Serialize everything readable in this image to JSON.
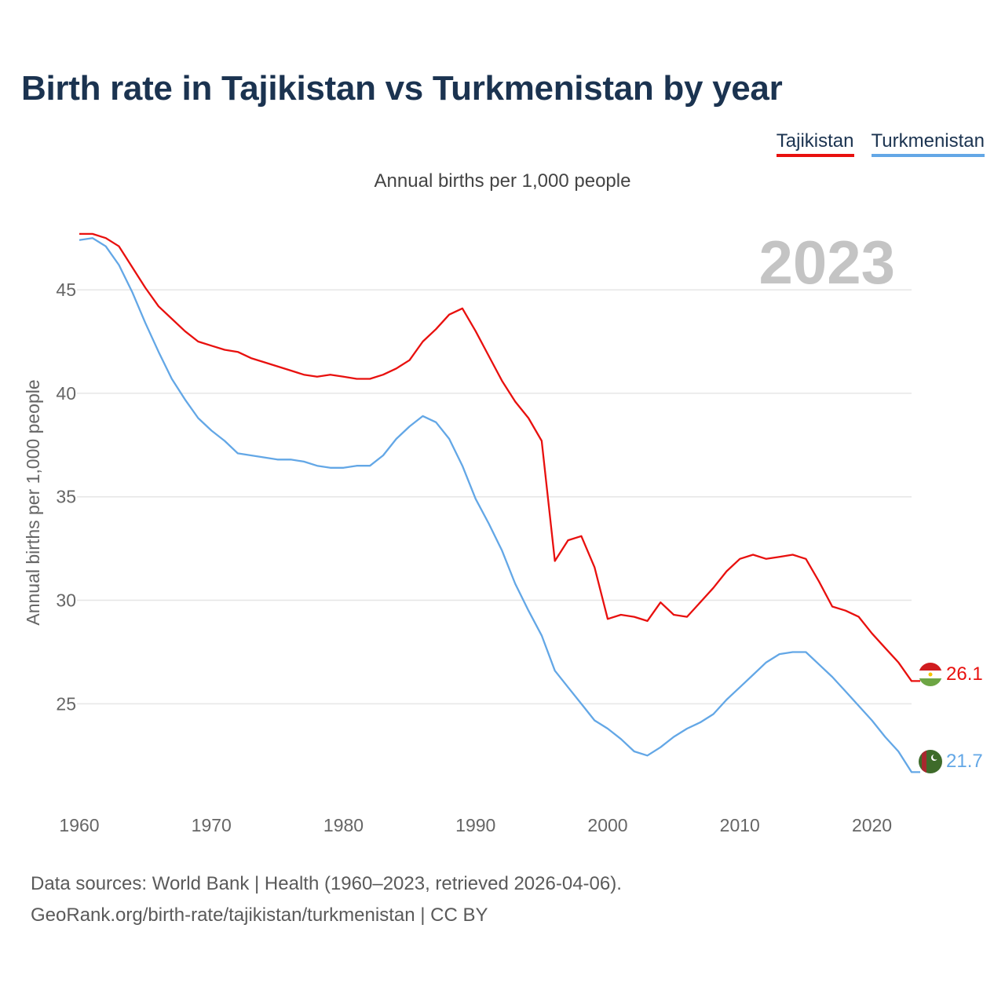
{
  "title": "Birth rate in Tajikistan vs Turkmenistan by year",
  "subtitle": "Annual births per 1,000 people",
  "legend": [
    {
      "name": "Tajikistan",
      "color": "#e8100e"
    },
    {
      "name": "Turkmenistan",
      "color": "#63a7e6"
    }
  ],
  "year_label": "2023",
  "footer": {
    "line1": "Data sources: World Bank | Health (1960–2023, retrieved 2026-04-06).",
    "line2": "GeoRank.org/birth-rate/tajikistan/turkmenistan | CC BY"
  },
  "chart_data": {
    "type": "line",
    "title": "Birth rate in Tajikistan vs Turkmenistan by year",
    "xlabel": "",
    "ylabel": "Annual births per 1,000 people",
    "xlim": [
      1960,
      2023
    ],
    "ylim": [
      20.5,
      48
    ],
    "grid": true,
    "x_ticks": [
      1960,
      1970,
      1980,
      1990,
      2000,
      2010,
      2020
    ],
    "y_ticks": [
      25,
      30,
      35,
      40,
      45
    ],
    "x": [
      1960,
      1961,
      1962,
      1963,
      1964,
      1965,
      1966,
      1967,
      1968,
      1969,
      1970,
      1971,
      1972,
      1973,
      1974,
      1975,
      1976,
      1977,
      1978,
      1979,
      1980,
      1981,
      1982,
      1983,
      1984,
      1985,
      1986,
      1987,
      1988,
      1989,
      1990,
      1991,
      1992,
      1993,
      1994,
      1995,
      1996,
      1997,
      1998,
      1999,
      2000,
      2001,
      2002,
      2003,
      2004,
      2005,
      2006,
      2007,
      2008,
      2009,
      2010,
      2011,
      2012,
      2013,
      2014,
      2015,
      2016,
      2017,
      2018,
      2019,
      2020,
      2021,
      2022,
      2023
    ],
    "series": [
      {
        "name": "Tajikistan",
        "color": "#e8100e",
        "end_label": "26.1",
        "values": [
          47.7,
          47.7,
          47.5,
          47.1,
          46.1,
          45.1,
          44.2,
          43.6,
          43.0,
          42.5,
          42.3,
          42.1,
          42.0,
          41.7,
          41.5,
          41.3,
          41.1,
          40.9,
          40.8,
          40.9,
          40.8,
          40.7,
          40.7,
          40.9,
          41.2,
          41.6,
          42.5,
          43.1,
          43.8,
          44.1,
          43.0,
          41.8,
          40.6,
          39.6,
          38.8,
          37.7,
          31.9,
          32.9,
          33.1,
          31.6,
          29.1,
          29.3,
          29.2,
          29.0,
          29.9,
          29.3,
          29.2,
          29.9,
          30.6,
          31.4,
          32.0,
          32.2,
          32.0,
          32.1,
          32.2,
          32.0,
          30.9,
          29.7,
          29.5,
          29.2,
          28.4,
          27.7,
          27.0,
          26.1
        ]
      },
      {
        "name": "Turkmenistan",
        "color": "#63a7e6",
        "end_label": "21.7",
        "values": [
          47.4,
          47.5,
          47.1,
          46.2,
          44.9,
          43.4,
          42.0,
          40.7,
          39.7,
          38.8,
          38.2,
          37.7,
          37.1,
          37.0,
          36.9,
          36.8,
          36.8,
          36.7,
          36.5,
          36.4,
          36.4,
          36.5,
          36.5,
          37.0,
          37.8,
          38.4,
          38.9,
          38.6,
          37.8,
          36.5,
          34.9,
          33.7,
          32.4,
          30.8,
          29.5,
          28.3,
          26.6,
          25.8,
          25.0,
          24.2,
          23.8,
          23.3,
          22.7,
          22.5,
          22.9,
          23.4,
          23.8,
          24.1,
          24.5,
          25.2,
          25.8,
          26.4,
          27.0,
          27.4,
          27.5,
          27.5,
          26.9,
          26.3,
          25.6,
          24.9,
          24.2,
          23.4,
          22.7,
          21.7
        ]
      }
    ]
  }
}
